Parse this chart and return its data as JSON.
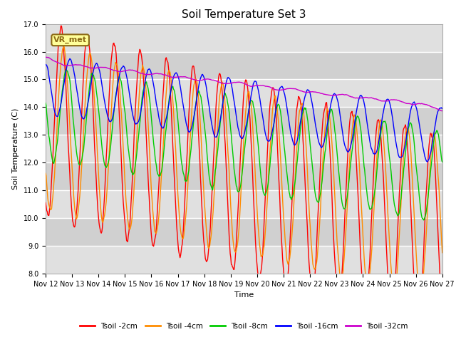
{
  "title": "Soil Temperature Set 3",
  "xlabel": "Time",
  "ylabel": "Soil Temperature (C)",
  "ylim": [
    8.0,
    17.0
  ],
  "yticks": [
    8.0,
    9.0,
    10.0,
    11.0,
    12.0,
    13.0,
    14.0,
    15.0,
    16.0,
    17.0
  ],
  "xlim": [
    0,
    360
  ],
  "xtick_positions": [
    0,
    24,
    48,
    72,
    96,
    120,
    144,
    168,
    192,
    216,
    240,
    264,
    288,
    312,
    336,
    360
  ],
  "xtick_labels": [
    "Nov 12",
    "Nov 13",
    "Nov 14",
    "Nov 15",
    "Nov 16",
    "Nov 17",
    "Nov 18",
    "Nov 19",
    "Nov 20",
    "Nov 21",
    "Nov 22",
    "Nov 23",
    "Nov 24",
    "Nov 25",
    "Nov 26",
    "Nov 27"
  ],
  "line_colors": [
    "#ff0000",
    "#ff8c00",
    "#00cc00",
    "#0000ff",
    "#cc00cc"
  ],
  "line_labels": [
    "Tsoil -2cm",
    "Tsoil -4cm",
    "Tsoil -8cm",
    "Tsoil -16cm",
    "Tsoil -32cm"
  ],
  "line_widths": [
    1.0,
    1.0,
    1.0,
    1.0,
    1.0
  ],
  "legend_label": "VR_met",
  "legend_box_color": "#ffff99",
  "legend_box_border": "#8b6914",
  "background_color": "#ffffff",
  "plot_bg_color": "#d8d8d8",
  "stripe_color": "#c8c8c8",
  "white_band_color": "#e8e8e8",
  "grid_color": "#ffffff",
  "title_fontsize": 11,
  "axis_fontsize": 8,
  "tick_fontsize": 7
}
